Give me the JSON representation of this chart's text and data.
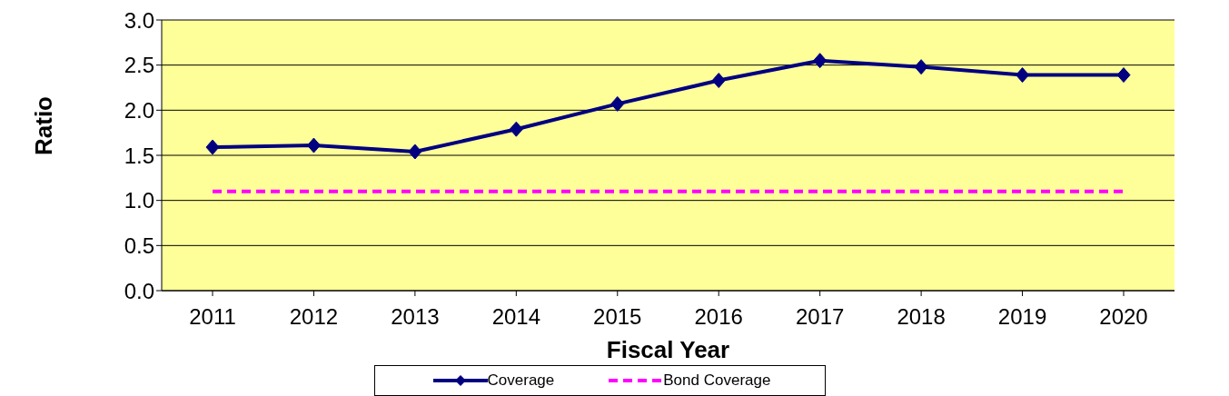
{
  "chart_data": {
    "type": "line",
    "xlabel": "Fiscal Year",
    "ylabel": "Ratio",
    "categories": [
      "2011",
      "2012",
      "2013",
      "2014",
      "2015",
      "2016",
      "2017",
      "2018",
      "2019",
      "2020"
    ],
    "series": [
      {
        "name": "Coverage",
        "color": "#000080",
        "values": [
          1.59,
          1.61,
          1.54,
          1.79,
          2.07,
          2.33,
          2.55,
          2.48,
          2.39,
          2.39
        ],
        "marker": "diamond",
        "line_style": "solid"
      },
      {
        "name": "Bond Coverage",
        "color": "#ff00ff",
        "values": [
          1.1,
          1.1,
          1.1,
          1.1,
          1.1,
          1.1,
          1.1,
          1.1,
          1.1,
          1.1
        ],
        "marker": "none",
        "line_style": "dashed"
      }
    ],
    "ylim": [
      0,
      3
    ],
    "yticks": [
      {
        "value": 0,
        "label": "0.0"
      },
      0.5,
      {
        "value": 1,
        "label": "1.0"
      },
      1.5,
      {
        "value": 2,
        "label": "2.0"
      },
      2.5,
      {
        "value": 3,
        "label": "3.0"
      }
    ],
    "grid": "y",
    "legend": "bottom"
  }
}
